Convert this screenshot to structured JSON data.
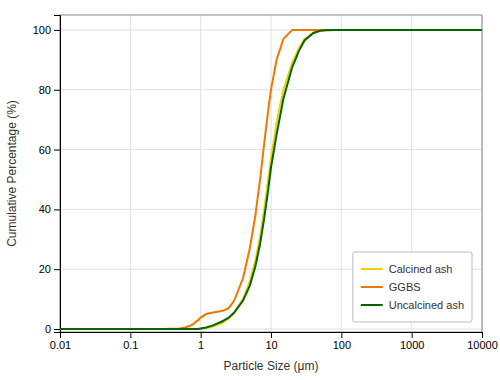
{
  "chart_data": {
    "type": "line",
    "xlabel": "Particle Size (μm)",
    "ylabel": "Cumulative Percentage (%)",
    "log": "x",
    "xlim": [
      0.01,
      10000
    ],
    "xticks": [
      0.01,
      0.1,
      1,
      10,
      100,
      1000,
      10000
    ],
    "ylim": [
      -1,
      105
    ],
    "yticks": [
      0,
      20,
      40,
      60,
      80,
      100
    ],
    "grid": true,
    "legend": "lower right",
    "series": [
      {
        "name": "Calcined ash",
        "color": "#f5d000",
        "x": [
          0.01,
          0.1,
          0.3,
          0.5,
          0.7,
          0.9,
          1.0,
          1.2,
          1.5,
          2.0,
          2.5,
          3.0,
          4.0,
          5.0,
          6.0,
          7.0,
          8.0,
          9.0,
          10.0,
          12.0,
          15.0,
          20.0,
          25.0,
          30.0,
          40.0,
          50.0,
          60.0,
          80.0,
          100.0,
          200.0,
          500.0,
          1000.0,
          10000.0
        ],
        "values": [
          0,
          0,
          0,
          0,
          0,
          0,
          0,
          0.3,
          0.8,
          2.0,
          3.5,
          5.5,
          10.0,
          16.0,
          23.0,
          31.0,
          40.0,
          49.0,
          57.0,
          69.0,
          80.0,
          89.0,
          94.0,
          97.0,
          99.0,
          99.7,
          99.9,
          100.0,
          100.0,
          100.0,
          100.0,
          100.0,
          100.0
        ]
      },
      {
        "name": "GGBS",
        "color": "#f07800",
        "x": [
          0.01,
          0.1,
          0.3,
          0.5,
          0.6,
          0.7,
          0.8,
          0.9,
          1.0,
          1.2,
          1.5,
          2.0,
          2.5,
          3.0,
          4.0,
          5.0,
          6.0,
          7.0,
          8.0,
          9.0,
          10.0,
          12.0,
          15.0,
          20.0,
          25.0,
          30.0,
          40.0,
          50.0,
          100.0,
          200.0,
          500.0,
          1000.0,
          10000.0
        ],
        "values": [
          0,
          0,
          0,
          0.2,
          0.5,
          1.0,
          1.8,
          2.8,
          3.8,
          5.0,
          5.5,
          6.0,
          7.0,
          9.5,
          17.0,
          27.0,
          38.0,
          50.0,
          62.0,
          72.0,
          80.0,
          90.0,
          97.0,
          100.0,
          100.0,
          100.0,
          100.0,
          100.0,
          100.0,
          100.0,
          100.0,
          100.0,
          100.0
        ]
      },
      {
        "name": "Uncalcined ash",
        "color": "#006400",
        "x": [
          0.01,
          0.1,
          0.3,
          0.5,
          0.7,
          0.9,
          1.0,
          1.2,
          1.5,
          2.0,
          2.5,
          3.0,
          4.0,
          5.0,
          6.0,
          7.0,
          8.0,
          9.0,
          10.0,
          12.0,
          15.0,
          20.0,
          25.0,
          30.0,
          40.0,
          50.0,
          60.0,
          80.0,
          100.0,
          150.0,
          200.0,
          500.0,
          1000.0,
          10000.0
        ],
        "values": [
          0,
          0,
          0,
          0,
          0,
          0,
          0.2,
          0.5,
          1.2,
          2.5,
          3.8,
          5.5,
          9.5,
          14.5,
          21.0,
          28.5,
          37.0,
          45.5,
          54.0,
          65.0,
          77.0,
          87.5,
          93.0,
          96.5,
          99.0,
          99.7,
          99.9,
          100.0,
          100.0,
          100.0,
          100.0,
          100.0,
          100.0,
          100.0
        ]
      }
    ]
  }
}
